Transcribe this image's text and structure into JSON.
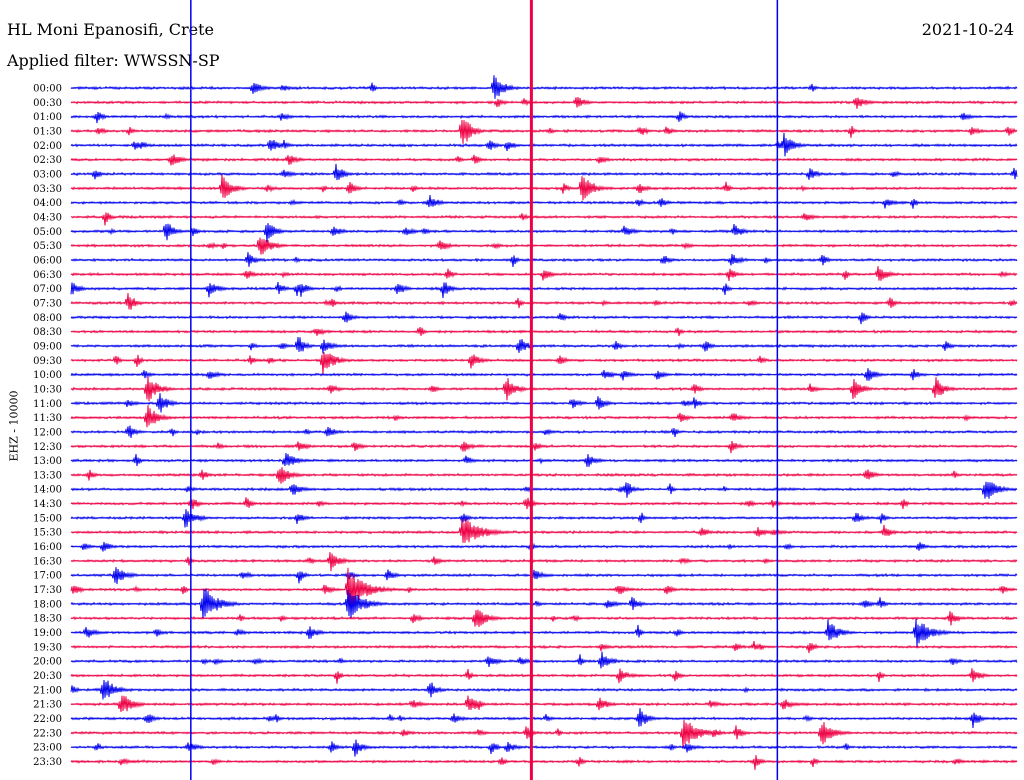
{
  "header": {
    "station": "HL Moni Epanosifi, Crete",
    "filter": "Applied filter: WWSSN-SP",
    "date": "2021-10-24"
  },
  "chart_data": {
    "type": "line",
    "title": "HL Moni Epanosifi, Crete",
    "subtitle": "Applied filter: WWSSN-SP",
    "date": "2021-10-24",
    "ylabel": "EHZ - 10000",
    "row_labels": [
      "00:00",
      "00:30",
      "01:00",
      "01:30",
      "02:00",
      "02:30",
      "03:00",
      "03:30",
      "04:00",
      "04:30",
      "05:00",
      "05:30",
      "06:00",
      "06:30",
      "07:00",
      "07:30",
      "08:00",
      "08:30",
      "09:00",
      "09:30",
      "10:00",
      "10:30",
      "11:00",
      "11:30",
      "12:00",
      "12:30",
      "13:00",
      "13:30",
      "14:00",
      "14:30",
      "15:00",
      "15:30",
      "16:00",
      "16:30",
      "17:00",
      "17:30",
      "18:00",
      "18:30",
      "19:00",
      "19:30",
      "20:00",
      "20:30",
      "21:00",
      "21:30",
      "22:00",
      "22:30",
      "23:00",
      "23:30"
    ],
    "series_colors": [
      "#0000ee",
      "#ee0044"
    ],
    "row_duration_minutes": 30,
    "through_going_lines_minutes": [
      3.8,
      14.6,
      22.4
    ]
  }
}
